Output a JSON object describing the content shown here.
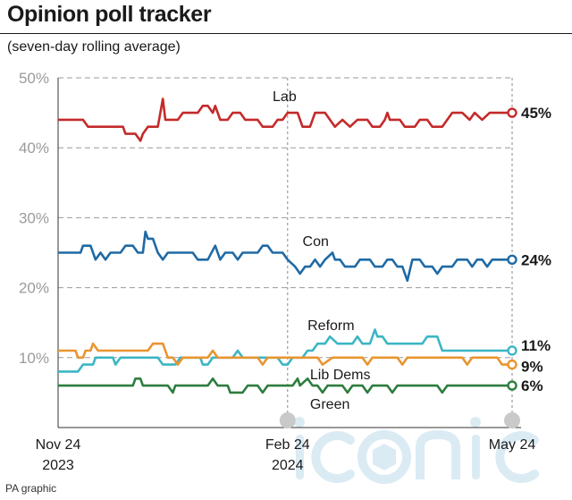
{
  "title": "Opinion poll tracker",
  "subtitle": "(seven-day rolling average)",
  "source": "PA graphic",
  "watermark": "iconic",
  "chart_data": {
    "type": "line",
    "ylim": [
      0,
      50
    ],
    "yticks": [
      {
        "value": 50,
        "label": "50%"
      },
      {
        "value": 40,
        "label": "40%"
      },
      {
        "value": 30,
        "label": "30%"
      },
      {
        "value": 20,
        "label": "20%"
      },
      {
        "value": 10,
        "label": "10%"
      }
    ],
    "x_range": [
      0,
      182
    ],
    "x_ticks": [
      {
        "value": 0,
        "line1": "Nov 24",
        "line2": "2023"
      },
      {
        "value": 92,
        "line1": "Feb 24",
        "line2": "2024"
      },
      {
        "value": 182,
        "line1": "May 24",
        "line2": ""
      }
    ],
    "grid": "horizontal dashed",
    "series": [
      {
        "name": "Lab",
        "color": "#c42a2a",
        "final_label": "45%",
        "end_value": 45,
        "points": [
          [
            0,
            44
          ],
          [
            10,
            44
          ],
          [
            12,
            43
          ],
          [
            26,
            43
          ],
          [
            27,
            42
          ],
          [
            31,
            42
          ],
          [
            33,
            41
          ],
          [
            34,
            42
          ],
          [
            36,
            43
          ],
          [
            40,
            43
          ],
          [
            41,
            45
          ],
          [
            42,
            47
          ],
          [
            43,
            44
          ],
          [
            48,
            44
          ],
          [
            50,
            45
          ],
          [
            56,
            45
          ],
          [
            58,
            46
          ],
          [
            60,
            46
          ],
          [
            62,
            45
          ],
          [
            63,
            46
          ],
          [
            65,
            44
          ],
          [
            68,
            44
          ],
          [
            70,
            45
          ],
          [
            73,
            45
          ],
          [
            75,
            44
          ],
          [
            80,
            44
          ],
          [
            82,
            43
          ],
          [
            86,
            43
          ],
          [
            88,
            44
          ],
          [
            90,
            44
          ],
          [
            92,
            45
          ],
          [
            96,
            45
          ],
          [
            98,
            43
          ],
          [
            101,
            43
          ],
          [
            103,
            45
          ],
          [
            107,
            45
          ],
          [
            109,
            44
          ],
          [
            111,
            43
          ],
          [
            114,
            44
          ],
          [
            117,
            43
          ],
          [
            120,
            44
          ],
          [
            124,
            44
          ],
          [
            126,
            43
          ],
          [
            129,
            43
          ],
          [
            131,
            44
          ],
          [
            132,
            45
          ],
          [
            133,
            44
          ],
          [
            137,
            44
          ],
          [
            139,
            43
          ],
          [
            143,
            43
          ],
          [
            145,
            44
          ],
          [
            148,
            44
          ],
          [
            150,
            43
          ],
          [
            154,
            43
          ],
          [
            156,
            44
          ],
          [
            158,
            45
          ],
          [
            162,
            45
          ],
          [
            165,
            44
          ],
          [
            167,
            45
          ],
          [
            170,
            44
          ],
          [
            173,
            45
          ],
          [
            182,
            45
          ]
        ]
      },
      {
        "name": "Con",
        "color": "#1f6aa5",
        "final_label": "24%",
        "end_value": 24,
        "points": [
          [
            0,
            25
          ],
          [
            9,
            25
          ],
          [
            10,
            26
          ],
          [
            13,
            26
          ],
          [
            14,
            25
          ],
          [
            15,
            24
          ],
          [
            17,
            25
          ],
          [
            19,
            24
          ],
          [
            21,
            25
          ],
          [
            25,
            25
          ],
          [
            27,
            26
          ],
          [
            30,
            26
          ],
          [
            32,
            25
          ],
          [
            34,
            25
          ],
          [
            35,
            28
          ],
          [
            36,
            27
          ],
          [
            38,
            27
          ],
          [
            40,
            25
          ],
          [
            42,
            24
          ],
          [
            44,
            25
          ],
          [
            54,
            25
          ],
          [
            56,
            24
          ],
          [
            60,
            24
          ],
          [
            63,
            26
          ],
          [
            65,
            24
          ],
          [
            67,
            25
          ],
          [
            70,
            25
          ],
          [
            72,
            24
          ],
          [
            74,
            25
          ],
          [
            80,
            25
          ],
          [
            82,
            26
          ],
          [
            84,
            26
          ],
          [
            86,
            25
          ],
          [
            90,
            25
          ],
          [
            92,
            24
          ],
          [
            95,
            23
          ],
          [
            97,
            22
          ],
          [
            99,
            23
          ],
          [
            101,
            23
          ],
          [
            103,
            24
          ],
          [
            105,
            23
          ],
          [
            107,
            24
          ],
          [
            110,
            25
          ],
          [
            111,
            24
          ],
          [
            113,
            24
          ],
          [
            115,
            23
          ],
          [
            119,
            23
          ],
          [
            121,
            24
          ],
          [
            125,
            24
          ],
          [
            127,
            23
          ],
          [
            130,
            23
          ],
          [
            132,
            24
          ],
          [
            134,
            24
          ],
          [
            136,
            23
          ],
          [
            138,
            23
          ],
          [
            140,
            21
          ],
          [
            142,
            24
          ],
          [
            145,
            24
          ],
          [
            147,
            23
          ],
          [
            150,
            23
          ],
          [
            152,
            22
          ],
          [
            154,
            23
          ],
          [
            158,
            23
          ],
          [
            160,
            24
          ],
          [
            164,
            24
          ],
          [
            166,
            23
          ],
          [
            168,
            24
          ],
          [
            170,
            24
          ],
          [
            172,
            23
          ],
          [
            174,
            24
          ],
          [
            182,
            24
          ]
        ]
      },
      {
        "name": "Reform",
        "color": "#3cb6c4",
        "final_label": "11%",
        "end_value": 11,
        "points": [
          [
            0,
            8
          ],
          [
            8,
            8
          ],
          [
            10,
            9
          ],
          [
            14,
            9
          ],
          [
            15,
            10
          ],
          [
            22,
            10
          ],
          [
            23,
            9
          ],
          [
            25,
            10
          ],
          [
            40,
            10
          ],
          [
            42,
            9
          ],
          [
            47,
            9
          ],
          [
            49,
            10
          ],
          [
            57,
            10
          ],
          [
            58,
            9
          ],
          [
            60,
            9
          ],
          [
            62,
            10
          ],
          [
            70,
            10
          ],
          [
            72,
            11
          ],
          [
            74,
            10
          ],
          [
            88,
            10
          ],
          [
            90,
            9
          ],
          [
            92,
            9
          ],
          [
            94,
            10
          ],
          [
            98,
            10
          ],
          [
            100,
            11
          ],
          [
            102,
            11
          ],
          [
            104,
            12
          ],
          [
            107,
            12
          ],
          [
            109,
            13
          ],
          [
            112,
            12
          ],
          [
            118,
            12
          ],
          [
            120,
            13
          ],
          [
            122,
            12
          ],
          [
            125,
            12
          ],
          [
            127,
            14
          ],
          [
            128,
            13
          ],
          [
            130,
            13
          ],
          [
            132,
            12
          ],
          [
            146,
            12
          ],
          [
            148,
            13
          ],
          [
            152,
            13
          ],
          [
            154,
            11
          ],
          [
            182,
            11
          ]
        ]
      },
      {
        "name": "Lib Dems",
        "color": "#e8952f",
        "final_label": "9%",
        "end_value": 9,
        "points": [
          [
            0,
            11
          ],
          [
            7,
            11
          ],
          [
            8,
            10
          ],
          [
            10,
            10
          ],
          [
            11,
            11
          ],
          [
            13,
            11
          ],
          [
            14,
            12
          ],
          [
            16,
            11
          ],
          [
            36,
            11
          ],
          [
            38,
            12
          ],
          [
            42,
            12
          ],
          [
            44,
            10
          ],
          [
            46,
            10
          ],
          [
            48,
            9
          ],
          [
            50,
            10
          ],
          [
            60,
            10
          ],
          [
            62,
            11
          ],
          [
            64,
            10
          ],
          [
            80,
            10
          ],
          [
            82,
            9
          ],
          [
            84,
            10
          ],
          [
            104,
            10
          ],
          [
            106,
            9
          ],
          [
            110,
            10
          ],
          [
            122,
            10
          ],
          [
            124,
            9
          ],
          [
            126,
            10
          ],
          [
            136,
            10
          ],
          [
            138,
            9
          ],
          [
            140,
            10
          ],
          [
            162,
            10
          ],
          [
            164,
            9
          ],
          [
            166,
            10
          ],
          [
            176,
            10
          ],
          [
            178,
            9
          ],
          [
            182,
            9
          ]
        ]
      },
      {
        "name": "Green",
        "color": "#2d7d3f",
        "final_label": "6%",
        "end_value": 6,
        "points": [
          [
            0,
            6
          ],
          [
            30,
            6
          ],
          [
            31,
            7
          ],
          [
            33,
            7
          ],
          [
            34,
            6
          ],
          [
            44,
            6
          ],
          [
            46,
            5
          ],
          [
            47,
            6
          ],
          [
            60,
            6
          ],
          [
            62,
            7
          ],
          [
            64,
            6
          ],
          [
            68,
            6
          ],
          [
            69,
            5
          ],
          [
            74,
            5
          ],
          [
            76,
            6
          ],
          [
            80,
            6
          ],
          [
            82,
            5
          ],
          [
            84,
            6
          ],
          [
            94,
            6
          ],
          [
            96,
            7
          ],
          [
            97,
            6
          ],
          [
            100,
            7
          ],
          [
            102,
            6
          ],
          [
            104,
            6
          ],
          [
            106,
            5
          ],
          [
            108,
            6
          ],
          [
            114,
            6
          ],
          [
            116,
            5
          ],
          [
            118,
            6
          ],
          [
            122,
            6
          ],
          [
            124,
            5
          ],
          [
            126,
            6
          ],
          [
            132,
            6
          ],
          [
            134,
            5
          ],
          [
            136,
            6
          ],
          [
            152,
            6
          ],
          [
            154,
            5
          ],
          [
            156,
            6
          ],
          [
            182,
            6
          ]
        ]
      }
    ],
    "annotations": [
      {
        "text": "Lab",
        "series": "Lab"
      },
      {
        "text": "Con",
        "series": "Con"
      },
      {
        "text": "Reform",
        "series": "Reform"
      },
      {
        "text": "Lib Dems",
        "series": "Lib Dems"
      },
      {
        "text": "Green",
        "series": "Green"
      }
    ]
  }
}
